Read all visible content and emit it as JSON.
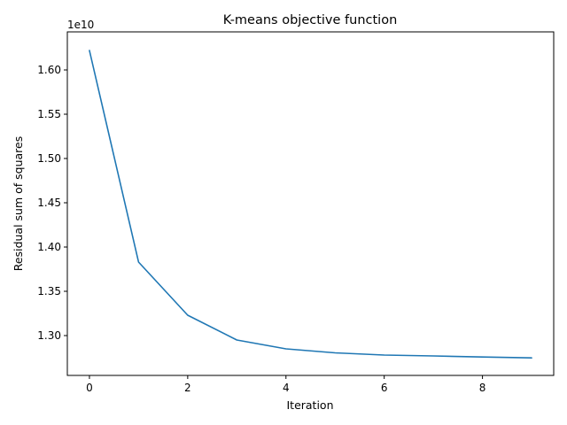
{
  "chart_data": {
    "type": "line",
    "title": "K-means objective function",
    "xlabel": "Iteration",
    "ylabel": "Residual sum of squares",
    "y_offset_label": "1e10",
    "y_scale_factor": 10000000000,
    "x": [
      0,
      1,
      2,
      3,
      4,
      5,
      6,
      7,
      8,
      9
    ],
    "series": [
      {
        "values": [
          16220000000,
          13830000000,
          13230000000,
          12950000000,
          12850000000,
          12805000000,
          12780000000,
          12770000000,
          12758000000,
          12748000000
        ],
        "color": "#1f77b4"
      }
    ],
    "xlim": [
      -0.45,
      9.45
    ],
    "ylim": [
      12550000000,
      16430000000
    ],
    "x_ticks": [
      0,
      2,
      4,
      6,
      8
    ],
    "x_tick_labels": [
      "0",
      "2",
      "4",
      "6",
      "8"
    ],
    "y_ticks": [
      13000000000,
      13500000000,
      14000000000,
      14500000000,
      15000000000,
      15500000000,
      16000000000
    ],
    "y_tick_labels": [
      "1.30",
      "1.35",
      "1.40",
      "1.45",
      "1.50",
      "1.55",
      "1.60"
    ],
    "y_tick_values_scaled": [
      1.3,
      1.35,
      1.4,
      1.45,
      1.5,
      1.55,
      1.6
    ],
    "grid": false,
    "legend": "none"
  }
}
